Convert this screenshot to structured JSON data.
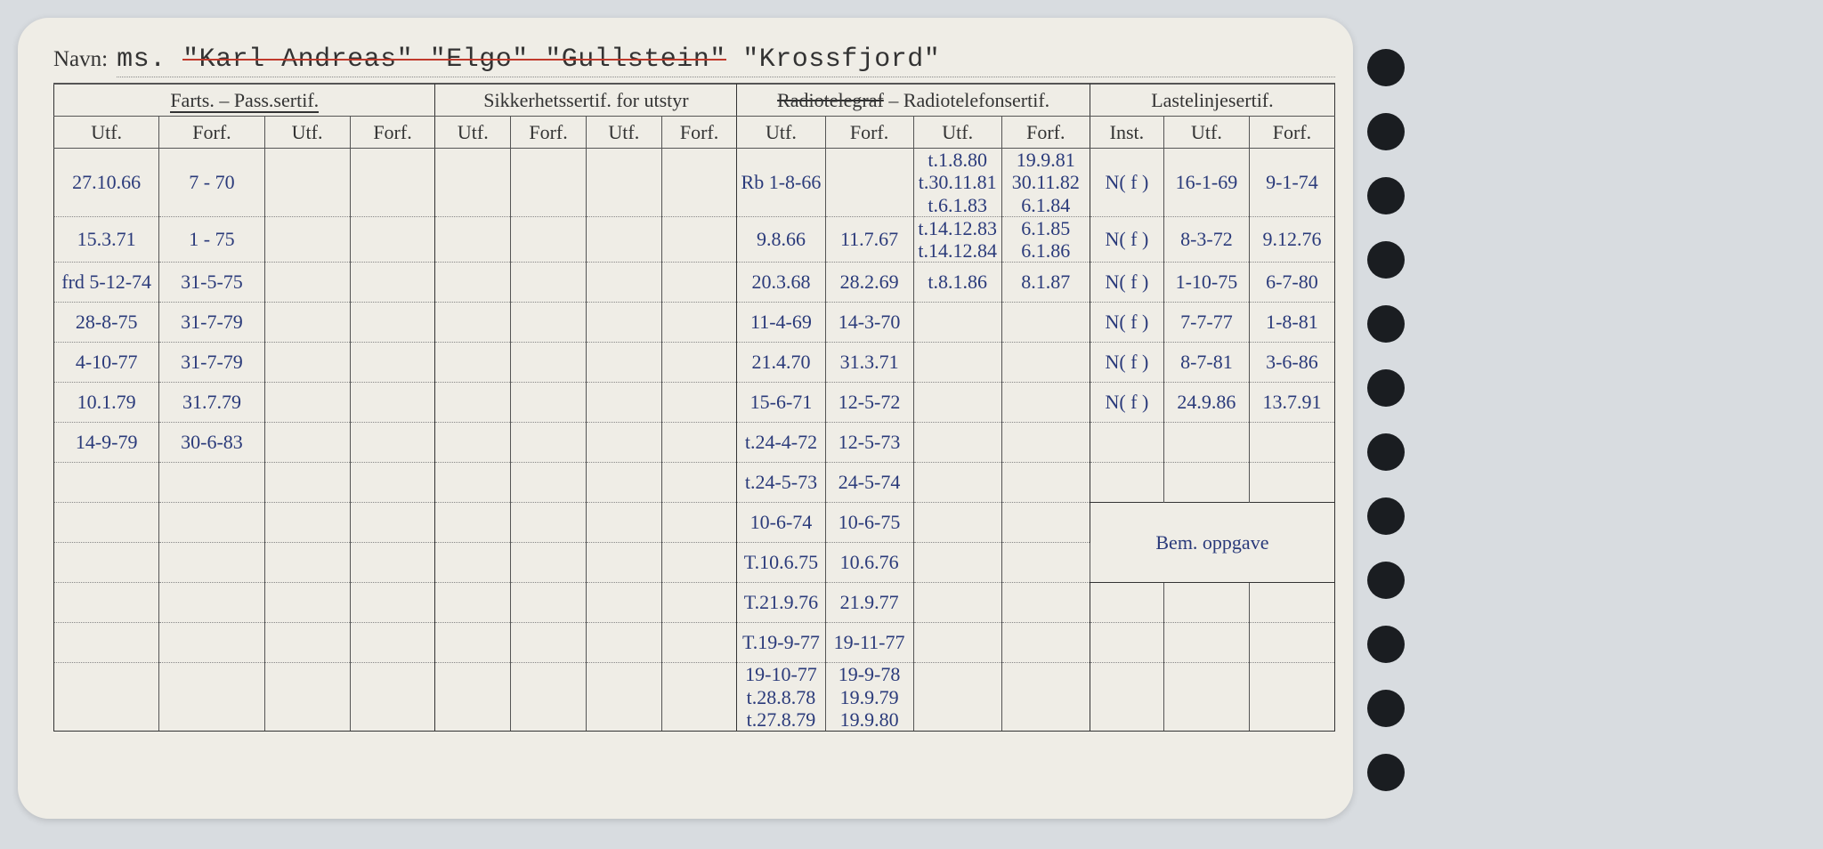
{
  "navn_label": "Navn:",
  "navn_prefix": "ms.",
  "navn_names": [
    "\"Karl Andreas\"",
    "\"Elgo\"",
    "\"Gullstein\"",
    "\"Krossfjord\""
  ],
  "navn_struck": [
    true,
    true,
    true,
    false
  ],
  "groups": {
    "g1": "Farts. – Pass.sertif.",
    "g2": "Sikkerhetssertif. for utstyr",
    "g3": "Radiotelegraf – Radiotelefonsertif.",
    "g4": "Lastelinjesertif."
  },
  "columns": [
    "Utf.",
    "Forf.",
    "Utf.",
    "Forf.",
    "Utf.",
    "Forf.",
    "Utf.",
    "Forf.",
    "Utf.",
    "Forf.",
    "Utf.",
    "Forf.",
    "Inst.",
    "Utf.",
    "Forf."
  ],
  "col_widths": [
    7.4,
    7.4,
    6.0,
    6.0,
    5.3,
    5.3,
    5.3,
    5.3,
    6.2,
    6.2,
    6.2,
    6.2,
    5.2,
    6.0,
    6.0
  ],
  "bem_label": "Bem. oppgave",
  "rows": [
    {
      "c": [
        "27.10.66",
        "7 - 70",
        "",
        "",
        "",
        "",
        "",
        "",
        "Rb 1-8-66",
        "",
        "t.1.8.80\nt.30.11.81\nt.6.1.83",
        "19.9.81\n30.11.82\n6.1.84",
        "N( f )",
        "16-1-69",
        "9-1-74"
      ]
    },
    {
      "c": [
        "15.3.71",
        "1 - 75",
        "",
        "",
        "",
        "",
        "",
        "",
        "9.8.66",
        "11.7.67",
        "t.14.12.83\nt.14.12.84",
        "6.1.85\n6.1.86",
        "N( f )",
        "8-3-72",
        "9.12.76"
      ]
    },
    {
      "c": [
        "frd 5-12-74",
        "31-5-75",
        "",
        "",
        "",
        "",
        "",
        "",
        "20.3.68",
        "28.2.69",
        "t.8.1.86",
        "8.1.87",
        "N( f )",
        "1-10-75",
        "6-7-80"
      ]
    },
    {
      "c": [
        "28-8-75",
        "31-7-79",
        "",
        "",
        "",
        "",
        "",
        "",
        "11-4-69",
        "14-3-70",
        "",
        "",
        "N( f )",
        "7-7-77",
        "1-8-81"
      ]
    },
    {
      "c": [
        "4-10-77",
        "31-7-79",
        "",
        "",
        "",
        "",
        "",
        "",
        "21.4.70",
        "31.3.71",
        "",
        "",
        "N( f )",
        "8-7-81",
        "3-6-86"
      ]
    },
    {
      "c": [
        "10.1.79",
        "31.7.79",
        "",
        "",
        "",
        "",
        "",
        "",
        "15-6-71",
        "12-5-72",
        "",
        "",
        "N( f )",
        "24.9.86",
        "13.7.91"
      ]
    },
    {
      "c": [
        "14-9-79",
        "30-6-83",
        "",
        "",
        "",
        "",
        "",
        "",
        "t.24-4-72",
        "12-5-73",
        "",
        "",
        "",
        "",
        ""
      ]
    },
    {
      "c": [
        "",
        "",
        "",
        "",
        "",
        "",
        "",
        "",
        "t.24-5-73",
        "24-5-74",
        "",
        "",
        "",
        "",
        ""
      ]
    },
    {
      "c": [
        "",
        "",
        "",
        "",
        "",
        "",
        "",
        "",
        "10-6-74",
        "10-6-75",
        "",
        "",
        "",
        "",
        ""
      ]
    },
    {
      "c": [
        "",
        "",
        "",
        "",
        "",
        "",
        "",
        "",
        "T.10.6.75",
        "10.6.76",
        "",
        "",
        "",
        "",
        ""
      ]
    },
    {
      "c": [
        "",
        "",
        "",
        "",
        "",
        "",
        "",
        "",
        "T.21.9.76",
        "21.9.77",
        "",
        "",
        "",
        "",
        ""
      ]
    },
    {
      "c": [
        "",
        "",
        "",
        "",
        "",
        "",
        "",
        "",
        "T.19-9-77",
        "19-11-77",
        "",
        "",
        "",
        "",
        ""
      ]
    },
    {
      "c": [
        "",
        "",
        "",
        "",
        "",
        "",
        "",
        "",
        "19-10-77\nt.28.8.78\nt.27.8.79",
        "19-9-78\n19.9.79\n19.9.80",
        "",
        "",
        "",
        "",
        ""
      ]
    }
  ],
  "bem_starts_at_row": 8,
  "colors": {
    "card_bg": "#efede6",
    "page_bg": "#d8dce0",
    "ink": "#2a3a7a",
    "print": "#333",
    "red": "#c0392b",
    "hole": "#1a1d21"
  }
}
